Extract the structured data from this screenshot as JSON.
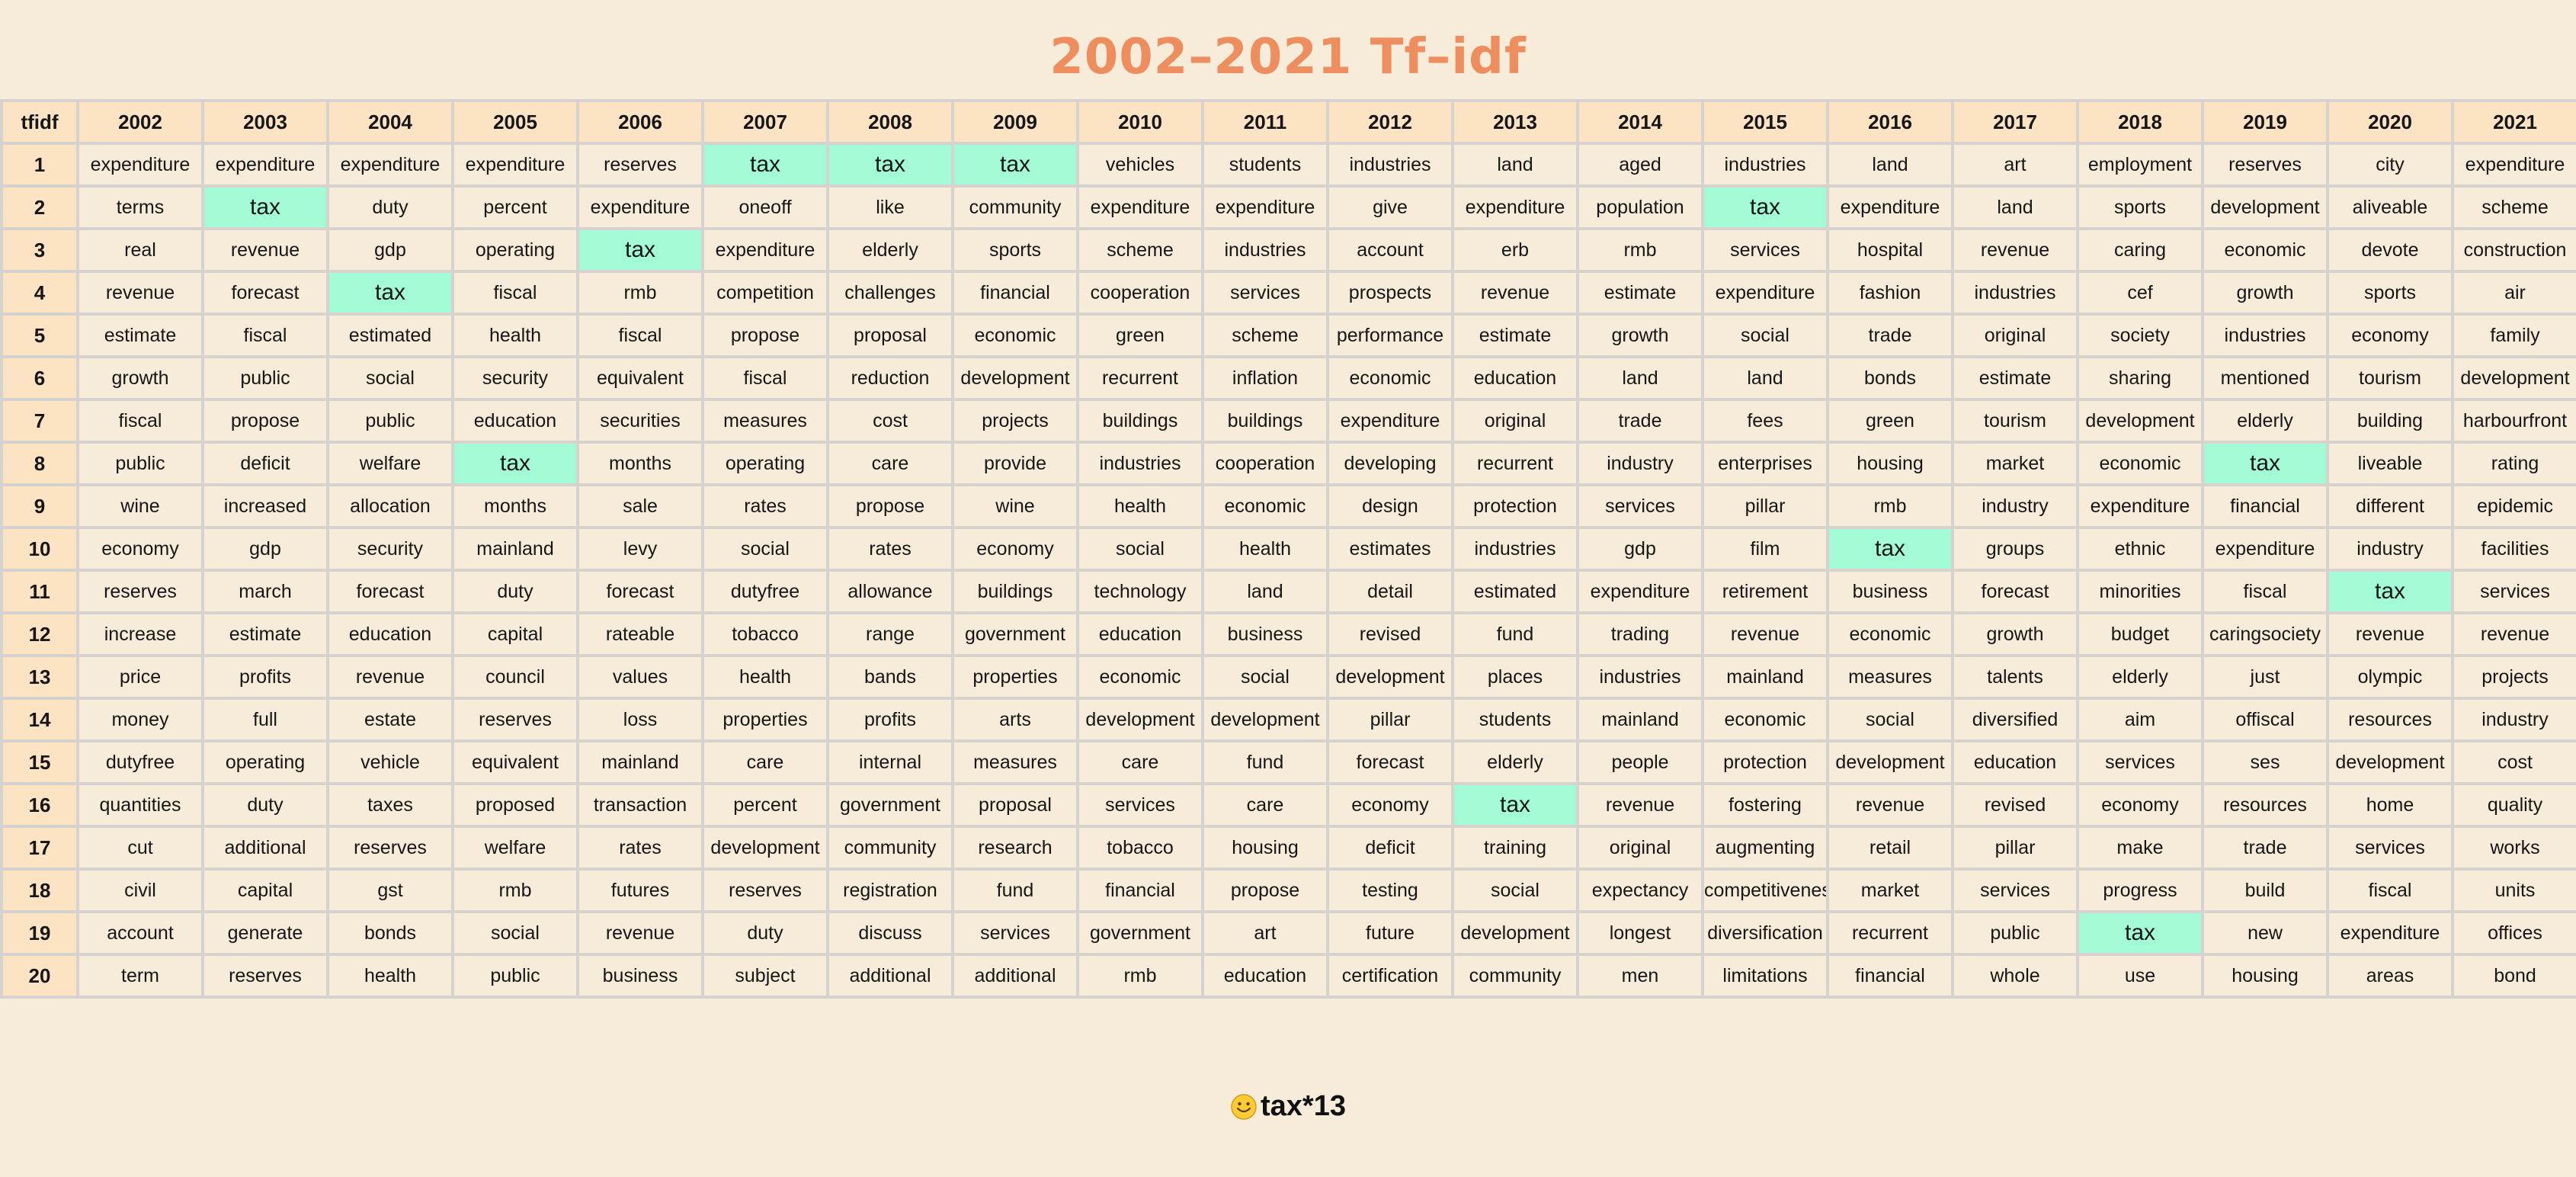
{
  "title": "2002–2021 Tf–idf",
  "footer": {
    "text": "tax*13",
    "icon": "smiling-face-icon"
  },
  "colors": {
    "background": "#f7ebd9",
    "header": "#fce3c4",
    "highlight": "#a3fbd6",
    "title": "#ee8e5e"
  },
  "chart_data": {
    "type": "table",
    "corner_label": "tfidf",
    "highlight_term": "tax",
    "columns": [
      "2002",
      "2003",
      "2004",
      "2005",
      "2006",
      "2007",
      "2008",
      "2009",
      "2010",
      "2011",
      "2012",
      "2013",
      "2014",
      "2015",
      "2016",
      "2017",
      "2018",
      "2019",
      "2020",
      "2021"
    ],
    "ranks": [
      "1",
      "2",
      "3",
      "4",
      "5",
      "6",
      "7",
      "8",
      "9",
      "10",
      "11",
      "12",
      "13",
      "14",
      "15",
      "16",
      "17",
      "18",
      "19",
      "20"
    ],
    "rows": [
      [
        "expenditure",
        "expenditure",
        "expenditure",
        "expenditure",
        "reserves",
        "tax",
        "tax",
        "tax",
        "vehicles",
        "students",
        "industries",
        "land",
        "aged",
        "industries",
        "land",
        "art",
        "employment",
        "reserves",
        "city",
        "expenditure"
      ],
      [
        "terms",
        "tax",
        "duty",
        "percent",
        "expenditure",
        "oneoff",
        "like",
        "community",
        "expenditure",
        "expenditure",
        "give",
        "expenditure",
        "population",
        "tax",
        "expenditure",
        "land",
        "sports",
        "development",
        "aliveable",
        "scheme"
      ],
      [
        "real",
        "revenue",
        "gdp",
        "operating",
        "tax",
        "expenditure",
        "elderly",
        "sports",
        "scheme",
        "industries",
        "account",
        "erb",
        "rmb",
        "services",
        "hospital",
        "revenue",
        "caring",
        "economic",
        "devote",
        "construction"
      ],
      [
        "revenue",
        "forecast",
        "tax",
        "fiscal",
        "rmb",
        "competition",
        "challenges",
        "financial",
        "cooperation",
        "services",
        "prospects",
        "revenue",
        "estimate",
        "expenditure",
        "fashion",
        "industries",
        "cef",
        "growth",
        "sports",
        "air"
      ],
      [
        "estimate",
        "fiscal",
        "estimated",
        "health",
        "fiscal",
        "propose",
        "proposal",
        "economic",
        "green",
        "scheme",
        "performance",
        "estimate",
        "growth",
        "social",
        "trade",
        "original",
        "society",
        "industries",
        "economy",
        "family"
      ],
      [
        "growth",
        "public",
        "social",
        "security",
        "equivalent",
        "fiscal",
        "reduction",
        "development",
        "recurrent",
        "inflation",
        "economic",
        "education",
        "land",
        "land",
        "bonds",
        "estimate",
        "sharing",
        "mentioned",
        "tourism",
        "development"
      ],
      [
        "fiscal",
        "propose",
        "public",
        "education",
        "securities",
        "measures",
        "cost",
        "projects",
        "buildings",
        "buildings",
        "expenditure",
        "original",
        "trade",
        "fees",
        "green",
        "tourism",
        "development",
        "elderly",
        "building",
        "harbourfront"
      ],
      [
        "public",
        "deficit",
        "welfare",
        "tax",
        "months",
        "operating",
        "care",
        "provide",
        "industries",
        "cooperation",
        "developing",
        "recurrent",
        "industry",
        "enterprises",
        "housing",
        "market",
        "economic",
        "tax",
        "liveable",
        "rating"
      ],
      [
        "wine",
        "increased",
        "allocation",
        "months",
        "sale",
        "rates",
        "propose",
        "wine",
        "health",
        "economic",
        "design",
        "protection",
        "services",
        "pillar",
        "rmb",
        "industry",
        "expenditure",
        "financial",
        "different",
        "epidemic"
      ],
      [
        "economy",
        "gdp",
        "security",
        "mainland",
        "levy",
        "social",
        "rates",
        "economy",
        "social",
        "health",
        "estimates",
        "industries",
        "gdp",
        "film",
        "tax",
        "groups",
        "ethnic",
        "expenditure",
        "industry",
        "facilities"
      ],
      [
        "reserves",
        "march",
        "forecast",
        "duty",
        "forecast",
        "dutyfree",
        "allowance",
        "buildings",
        "technology",
        "land",
        "detail",
        "estimated",
        "expenditure",
        "retirement",
        "business",
        "forecast",
        "minorities",
        "fiscal",
        "tax",
        "services"
      ],
      [
        "increase",
        "estimate",
        "education",
        "capital",
        "rateable",
        "tobacco",
        "range",
        "government",
        "education",
        "business",
        "revised",
        "fund",
        "trading",
        "revenue",
        "economic",
        "growth",
        "budget",
        "caringsociety",
        "revenue",
        "revenue"
      ],
      [
        "price",
        "profits",
        "revenue",
        "council",
        "values",
        "health",
        "bands",
        "properties",
        "economic",
        "social",
        "development",
        "places",
        "industries",
        "mainland",
        "measures",
        "talents",
        "elderly",
        "just",
        "olympic",
        "projects"
      ],
      [
        "money",
        "full",
        "estate",
        "reserves",
        "loss",
        "properties",
        "profits",
        "arts",
        "development",
        "development",
        "pillar",
        "students",
        "mainland",
        "economic",
        "social",
        "diversified",
        "aim",
        "offiscal",
        "resources",
        "industry"
      ],
      [
        "dutyfree",
        "operating",
        "vehicle",
        "equivalent",
        "mainland",
        "care",
        "internal",
        "measures",
        "care",
        "fund",
        "forecast",
        "elderly",
        "people",
        "protection",
        "development",
        "education",
        "services",
        "ses",
        "development",
        "cost"
      ],
      [
        "quantities",
        "duty",
        "taxes",
        "proposed",
        "transaction",
        "percent",
        "government",
        "proposal",
        "services",
        "care",
        "economy",
        "tax",
        "revenue",
        "fostering",
        "revenue",
        "revised",
        "economy",
        "resources",
        "home",
        "quality"
      ],
      [
        "cut",
        "additional",
        "reserves",
        "welfare",
        "rates",
        "development",
        "community",
        "research",
        "tobacco",
        "housing",
        "deficit",
        "training",
        "original",
        "augmenting",
        "retail",
        "pillar",
        "make",
        "trade",
        "services",
        "works"
      ],
      [
        "civil",
        "capital",
        "gst",
        "rmb",
        "futures",
        "reserves",
        "registration",
        "fund",
        "financial",
        "propose",
        "testing",
        "social",
        "expectancy",
        "competitiveness",
        "market",
        "services",
        "progress",
        "build",
        "fiscal",
        "units"
      ],
      [
        "account",
        "generate",
        "bonds",
        "social",
        "revenue",
        "duty",
        "discuss",
        "services",
        "government",
        "art",
        "future",
        "development",
        "longest",
        "diversification",
        "recurrent",
        "public",
        "tax",
        "new",
        "expenditure",
        "offices"
      ],
      [
        "term",
        "reserves",
        "health",
        "public",
        "business",
        "subject",
        "additional",
        "additional",
        "rmb",
        "education",
        "certification",
        "community",
        "men",
        "limitations",
        "financial",
        "whole",
        "use",
        "housing",
        "areas",
        "bond"
      ]
    ]
  }
}
